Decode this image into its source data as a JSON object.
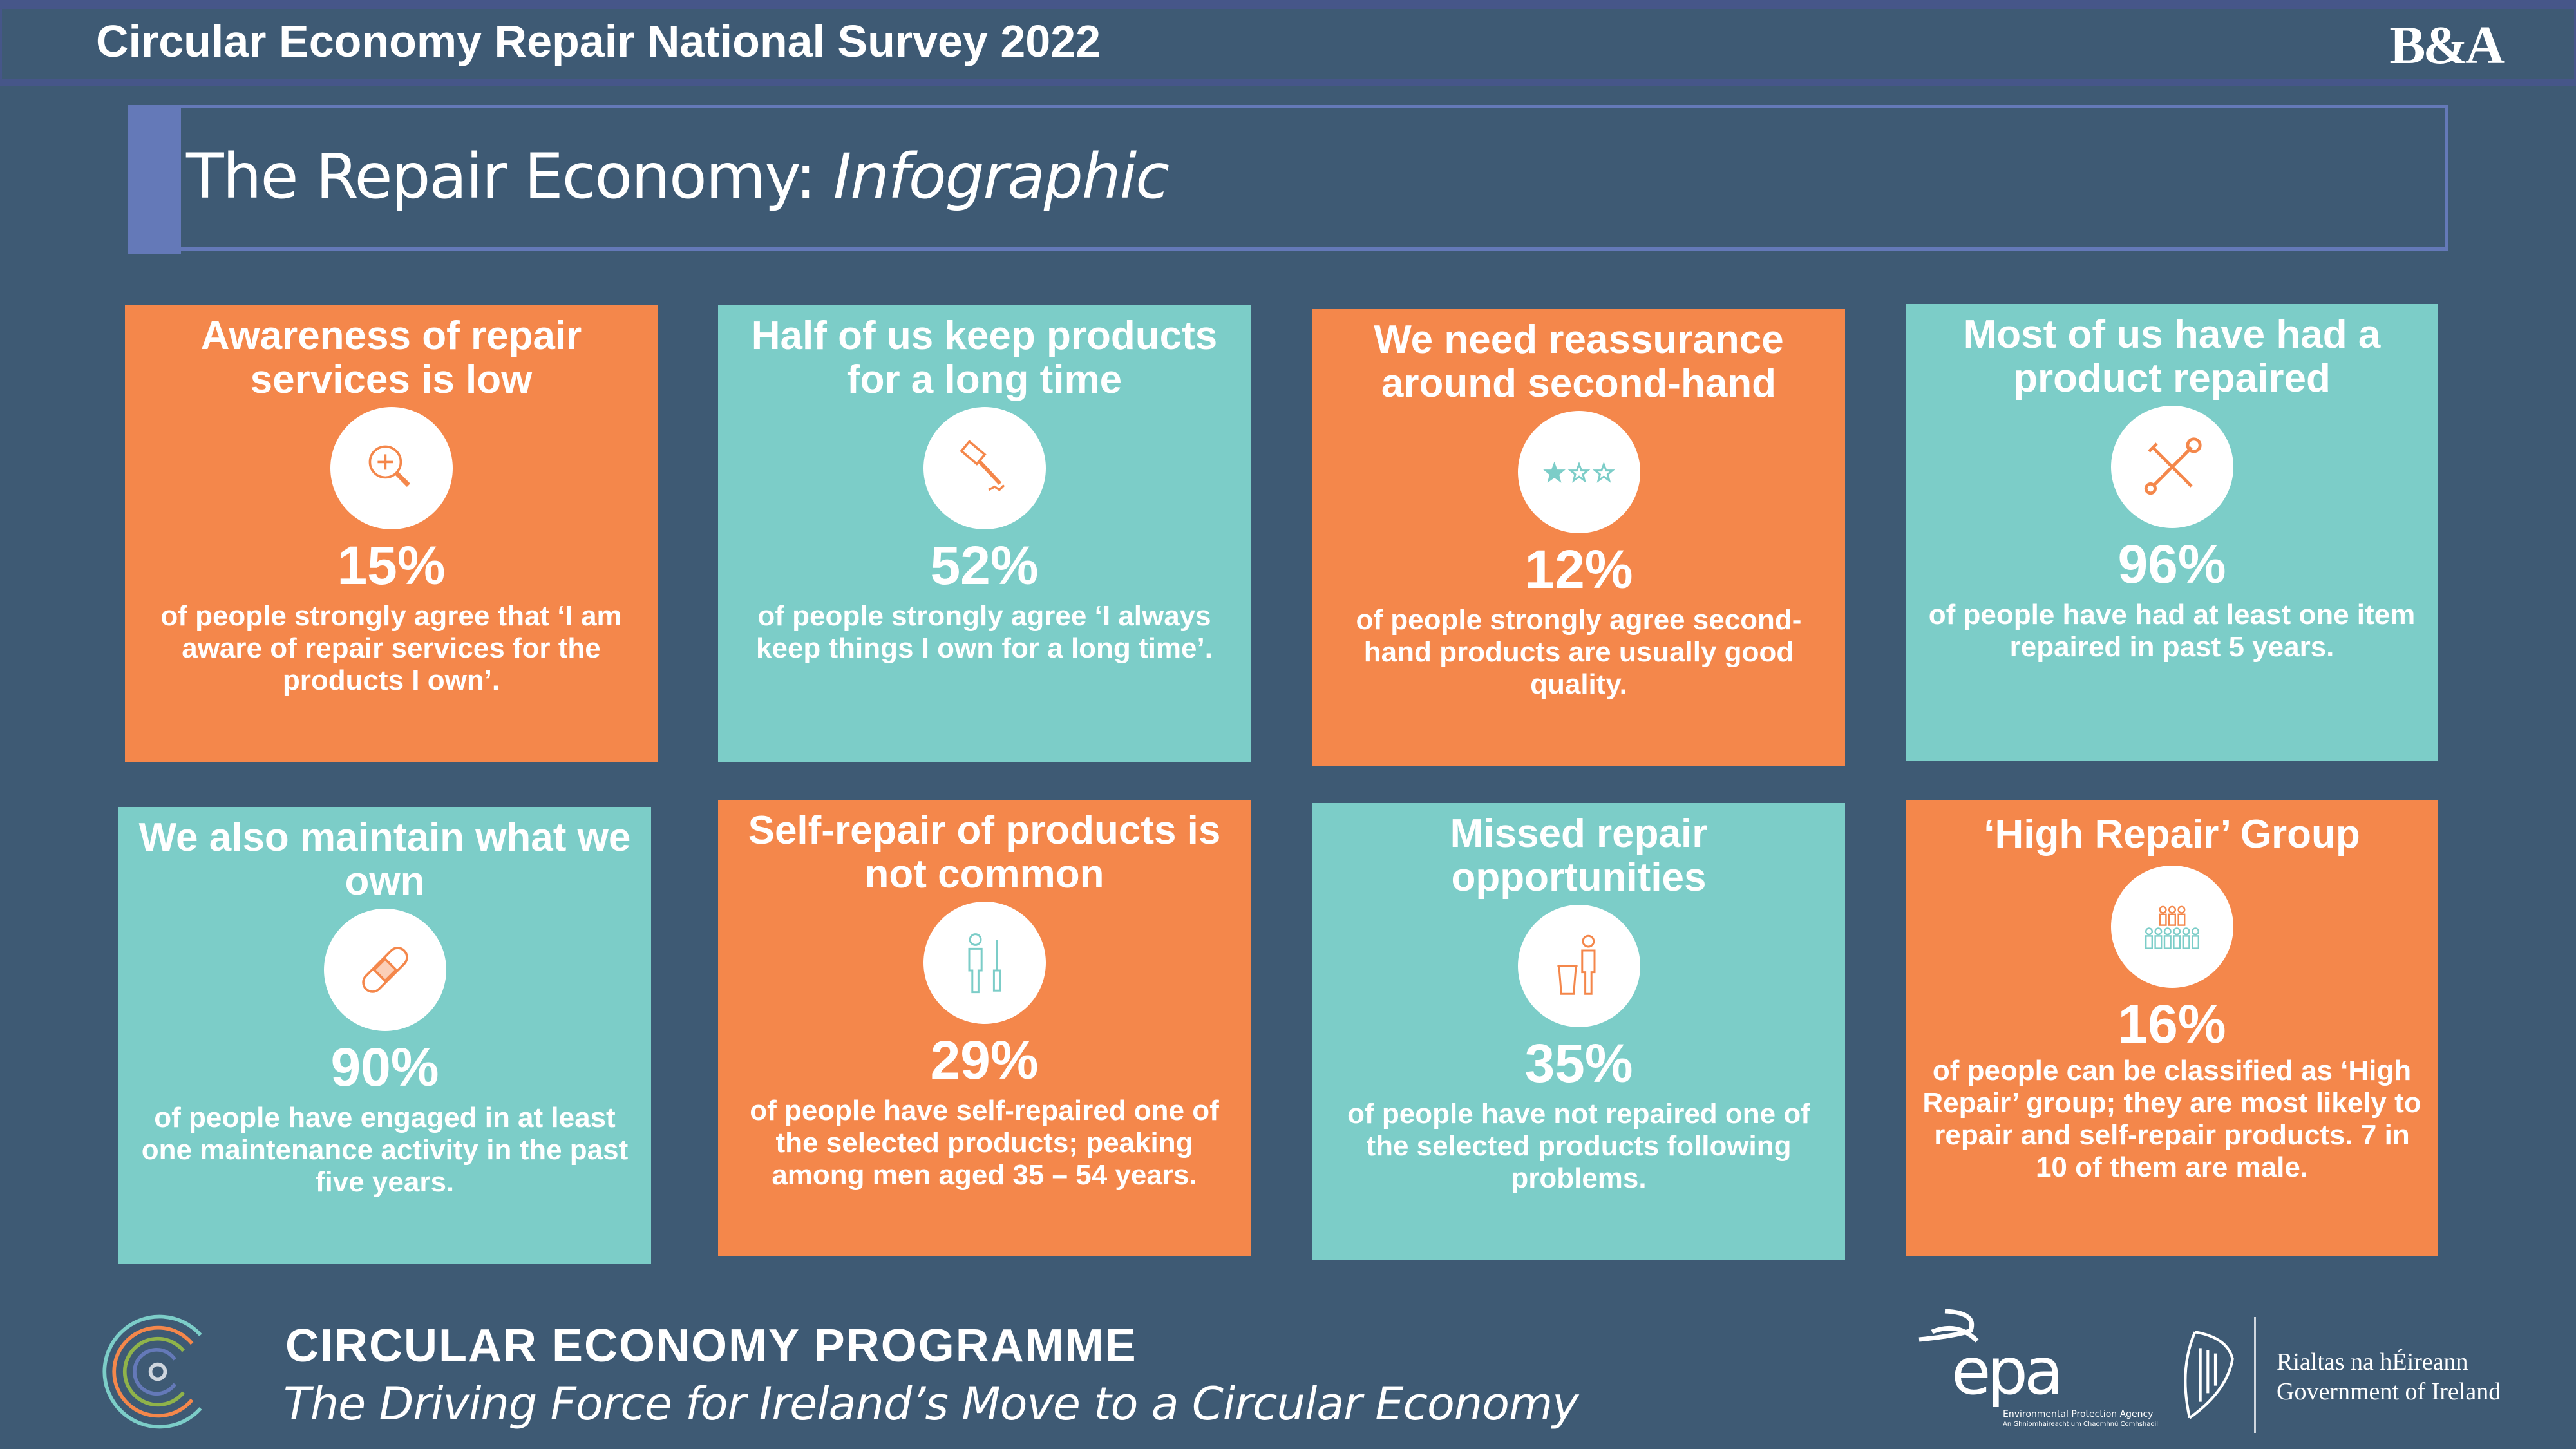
{
  "header": {
    "title": "Circular Economy Repair National Survey 2022",
    "logo": "B&A"
  },
  "page_title": {
    "main": "The Repair Economy: ",
    "italic": "Infographic"
  },
  "colors": {
    "background": "#3e5a74",
    "orange": "#f4874b",
    "teal": "#7ccdc8",
    "accent": "#6479b8"
  },
  "cards": [
    {
      "title": "Awareness of repair services is low",
      "icon": "magnifier-plus-icon",
      "percent": "15%",
      "text": "of people strongly agree that ‘I am aware of repair services for the products I own’."
    },
    {
      "title": "Half of us keep products for a long time",
      "icon": "hammer-icon",
      "percent": "52%",
      "text": "of people strongly agree ‘I always keep things I own for a long time’."
    },
    {
      "title": "We need reassurance around second-hand",
      "icon": "star-rating-icon",
      "percent": "12%",
      "text": "of people strongly agree second-hand products are usually good quality."
    },
    {
      "title": "Most of us have had a product repaired",
      "icon": "wrench-screwdriver-icon",
      "percent": "96%",
      "text": "of people have had at least one item repaired in past 5 years."
    },
    {
      "title": "We also maintain what we own",
      "icon": "bandage-icon",
      "percent": "90%",
      "text": "of people have engaged in at least one maintenance activity in the past five years."
    },
    {
      "title": "Self-repair of products is not common",
      "icon": "person-screwdriver-icon",
      "percent": "29%",
      "text": "of people have self-repaired one of the selected products; peaking among men aged 35 – 54 years."
    },
    {
      "title": "Missed repair opportunities",
      "icon": "person-bin-icon",
      "percent": "35%",
      "text": "of people have not repaired one of the selected products following problems."
    },
    {
      "title": "‘High Repair’ Group",
      "icon": "people-group-icon",
      "percent": "16%",
      "text": "of people can be classified as ‘High Repair’ group; they are most likely to repair and self-repair products. 7 in 10 of them are male."
    }
  ],
  "footer": {
    "programme": "CIRCULAR ECONOMY PROGRAMME",
    "tagline": "The Driving Force for Ireland’s Move to a Circular Economy",
    "epa_logo": "epa",
    "epa_sub1": "Environmental Protection Agency",
    "epa_sub2": "An Ghníomhaireacht um Chaomhnú Comhshaoil",
    "gov_line1": "Rialtas na hÉireann",
    "gov_line2": "Government of Ireland"
  }
}
